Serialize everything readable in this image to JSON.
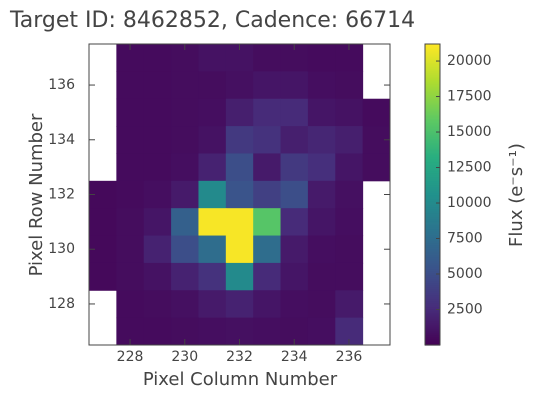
{
  "chart_data": {
    "type": "heatmap",
    "title": "Target ID: 8462852, Cadence: 66714",
    "xlabel": "Pixel Column Number",
    "ylabel": "Pixel Row Number",
    "colorbar_label": "Flux (e⁻s⁻¹)",
    "colormap": "viridis",
    "x": [
      227,
      228,
      229,
      230,
      231,
      232,
      233,
      234,
      235,
      236,
      237
    ],
    "y": [
      137,
      136,
      135,
      134,
      133,
      132,
      131,
      130,
      129,
      128,
      127
    ],
    "z": [
      [
        null,
        600,
        600,
        700,
        1000,
        1000,
        700,
        700,
        600,
        600,
        null
      ],
      [
        null,
        600,
        600,
        700,
        700,
        900,
        1200,
        1200,
        800,
        700,
        null
      ],
      [
        null,
        600,
        600,
        700,
        800,
        1800,
        2500,
        2500,
        1200,
        1000,
        600
      ],
      [
        null,
        600,
        600,
        700,
        1000,
        3500,
        3000,
        1800,
        2200,
        1800,
        700
      ],
      [
        null,
        600,
        600,
        800,
        2000,
        5000,
        1500,
        3500,
        2800,
        1200,
        700
      ],
      [
        500,
        600,
        800,
        1500,
        10000,
        5500,
        4000,
        5000,
        1500,
        900,
        null
      ],
      [
        500,
        700,
        1200,
        6500,
        21000,
        21000,
        15500,
        2500,
        1200,
        800,
        null
      ],
      [
        500,
        700,
        2000,
        5000,
        7500,
        21000,
        7500,
        1500,
        800,
        700,
        null
      ],
      [
        500,
        700,
        1000,
        2000,
        3000,
        10000,
        2500,
        1200,
        700,
        700,
        null
      ],
      [
        null,
        600,
        700,
        900,
        1500,
        2000,
        1200,
        800,
        700,
        1500,
        null
      ],
      [
        null,
        600,
        600,
        700,
        800,
        900,
        800,
        700,
        800,
        2500,
        null
      ]
    ],
    "xlim": [
      226.5,
      237.5
    ],
    "ylim": [
      126.5,
      137.5
    ],
    "xticks": [
      228,
      230,
      232,
      234,
      236
    ],
    "yticks": [
      128,
      130,
      132,
      134,
      136
    ],
    "zlim": [
      0,
      21200
    ],
    "colorbar_ticks": [
      2500,
      5000,
      7500,
      10000,
      12500,
      15000,
      17500,
      20000
    ]
  }
}
